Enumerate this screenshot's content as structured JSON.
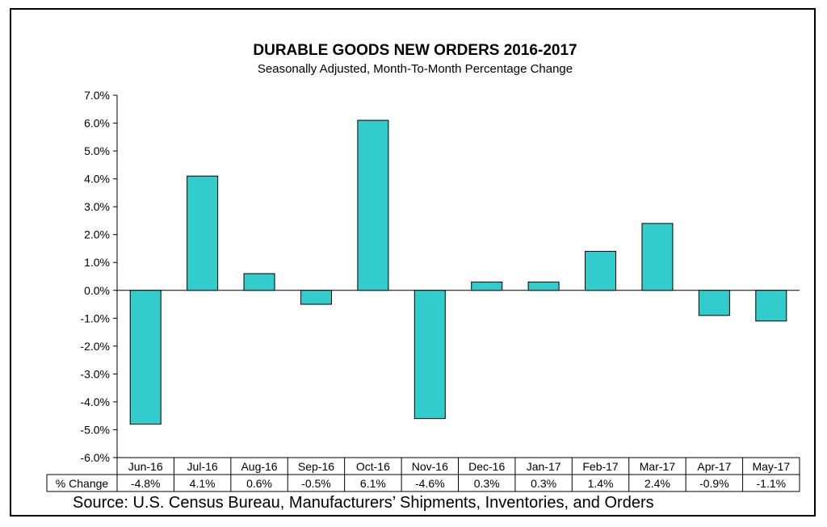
{
  "chart_data": {
    "type": "bar",
    "title": "DURABLE GOODS NEW ORDERS 2016-2017",
    "subtitle": "Seasonally Adjusted,  Month-To-Month  Percentage  Change",
    "categories": [
      "Jun-16",
      "Jul-16",
      "Aug-16",
      "Sep-16",
      "Oct-16",
      "Nov-16",
      "Dec-16",
      "Jan-17",
      "Feb-17",
      "Mar-17",
      "Apr-17",
      "May-17"
    ],
    "series": [
      {
        "name": "% Change",
        "values": [
          -4.8,
          4.1,
          0.6,
          -0.5,
          6.1,
          -4.6,
          0.3,
          0.3,
          1.4,
          2.4,
          -0.9,
          -1.1
        ],
        "labels": [
          "-4.8%",
          "4.1%",
          "0.6%",
          "-0.5%",
          "6.1%",
          "-4.6%",
          "0.3%",
          "0.3%",
          "1.4%",
          "2.4%",
          "-0.9%",
          "-1.1%"
        ]
      }
    ],
    "ylim": [
      -6,
      7
    ],
    "yticks": [
      7,
      6,
      5,
      4,
      3,
      2,
      1,
      0,
      -1,
      -2,
      -3,
      -4,
      -5,
      -6
    ],
    "ytick_labels": [
      "7.0%",
      "6.0%",
      "5.0%",
      "4.0%",
      "3.0%",
      "2.0%",
      "1.0%",
      "0.0%",
      "-1.0%",
      "-2.0%",
      "-3.0%",
      "-4.0%",
      "-5.0%",
      "-6.0%"
    ],
    "grid": false,
    "legend": "none",
    "bar_color": "#33CCCC",
    "source": "Source: U.S. Census Bureau, Manufacturers’ Shipments, Inventories, and Orders"
  }
}
